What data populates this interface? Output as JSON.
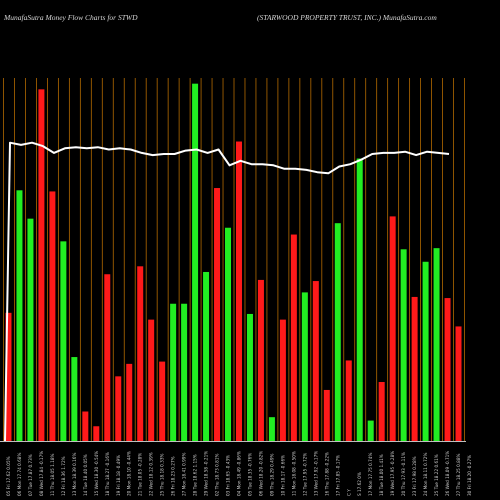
{
  "header": {
    "left_title": "MunafaSutra  Money Flow  Charts for STWD",
    "right_title": "(STARWOOD PROPERTY TRUST,  INC.) MunafaSutra.com"
  },
  "chart_data": {
    "type": "bar",
    "colors": {
      "up": "#22ee22",
      "down": "#ff1a1a",
      "grid": "#b36a00",
      "line": "#ffffff",
      "background": "#000000"
    },
    "categories": [
      "05 Fri 17.62 0.05%",
      "06 Mon 17.74 0.68%",
      "07 Tue 17.87 0.73%",
      "08 Wed 17.84 -0.17%",
      "11 Thu 18.05 1.18%",
      "12 Fri 18.36 1.72%",
      "13 Mon 18.39 0.16%",
      "14 Tue 18.40 0.05%",
      "15 Wed 18.30 -0.54%",
      "18 Thu 18.27 -0.16%",
      "19 Fri 18.18 -0.49%",
      "20 Mon 18.10 -0.44%",
      "21 Tue 18.05 -0.28%",
      "22 Wed 18.12 0.39%",
      "25 Thu 18.18 0.33%",
      "26 Fri 18.23 0.27%",
      "27 Mon 18.41 0.99%",
      "28 Tue 18.62 1.15%",
      "29 Wed 18.58 -0.21%",
      "02 Thu 18.73 0.81%",
      "03 Fri 18.65 -0.43%",
      "04 Mon 18.49 -0.86%",
      "05 Tue 18.35 -0.76%",
      "06 Wed 18.20 -0.82%",
      "09 Thu 18.29 0.49%",
      "10 Fri 18.17 -0.66%",
      "11 Mon 18.08 -0.50%",
      "12 Tue 17.95 -0.72%",
      "13 Wed 17.92 -0.17%",
      "16 Thu 17.88 -0.22%",
      "17 Fri 17.85 -0.17%",
      "C Y",
      "S  17.62 0%",
      "17 Mon 17.75 0.74%",
      "18 Tue 18.00 1.41%",
      "19 Wed 17.95 -0.28%",
      "20 Thu 17.93 -0.11%",
      "23 Fri 17.98 0.28%",
      "24 Mon 18.11 0.72%",
      "25 Tue 18.22 0.61%",
      "26 Wed 18.09 -0.71%",
      "27 Thu 18.25 0.88%",
      "30 Fri 18.20 -0.27%"
    ],
    "bar_values": [
      113,
      221,
      196,
      310,
      220,
      176,
      74,
      26,
      13,
      147,
      57,
      68,
      154,
      107,
      70,
      121,
      121,
      315,
      149,
      223,
      188,
      264,
      112,
      142,
      21,
      107,
      182,
      131,
      141,
      45,
      192,
      71,
      249,
      18,
      52,
      198,
      169,
      127,
      158,
      170,
      126,
      101
    ],
    "bar_directions": [
      "down",
      "up",
      "up",
      "down",
      "down",
      "up",
      "up",
      "down",
      "down",
      "down",
      "down",
      "down",
      "down",
      "down",
      "down",
      "up",
      "up",
      "up",
      "up",
      "down",
      "up",
      "down",
      "up",
      "down",
      "up",
      "down",
      "down",
      "up",
      "down",
      "down",
      "up",
      "down",
      "up",
      "up",
      "down",
      "down",
      "up",
      "down",
      "up",
      "up",
      "down",
      "down"
    ],
    "line_values": [
      263,
      261,
      263,
      260,
      254,
      258,
      259,
      258,
      259,
      257,
      258,
      257,
      254,
      252,
      253,
      253,
      256,
      257,
      254,
      257,
      243,
      247,
      244,
      244,
      243,
      240,
      240,
      239,
      237,
      236,
      242,
      244,
      248,
      253,
      254,
      254,
      255,
      252,
      255,
      254,
      253
    ],
    "line_start": 0,
    "ylim": [
      0,
      320
    ],
    "grid": true
  }
}
